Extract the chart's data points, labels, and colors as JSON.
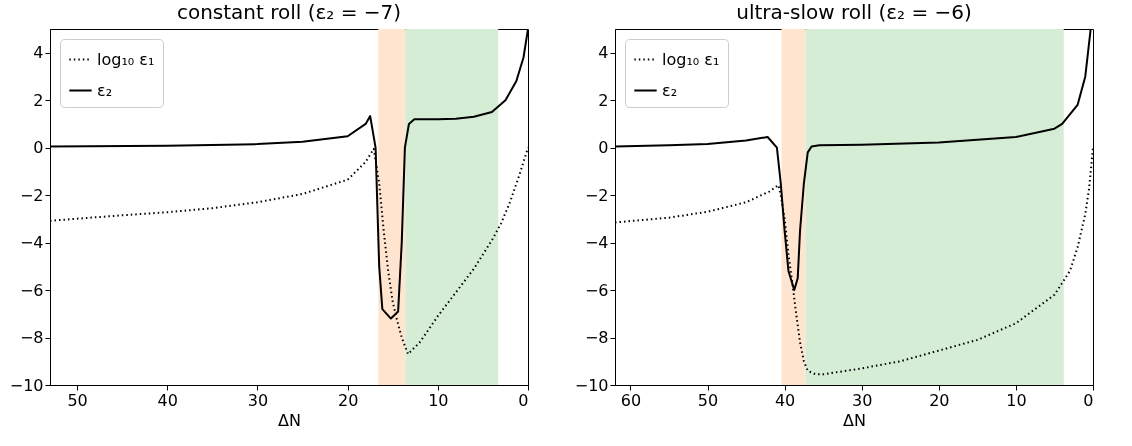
{
  "chart_data": [
    {
      "type": "line",
      "title": "constant roll (ε₂ = −7)",
      "xlabel": "ΔN",
      "xlim": [
        53,
        0
      ],
      "ylim": [
        -10,
        5
      ],
      "xticks": [
        50,
        40,
        30,
        20,
        10,
        0
      ],
      "yticks": [
        -10,
        -8,
        -6,
        -4,
        -2,
        0,
        2,
        4
      ],
      "grid": false,
      "legend": "top left",
      "bands": [
        {
          "axis": "x",
          "from": 16.6,
          "to": 13.6,
          "color": "#ffe5cf"
        },
        {
          "axis": "x",
          "from": 13.6,
          "to": 3.3,
          "color": "#d5ecd5"
        }
      ],
      "series": [
        {
          "name": "log₁₀ ε₁",
          "color": "#000000",
          "line_style": "dotted",
          "x": [
            53,
            45,
            40,
            35,
            30,
            25,
            20,
            18,
            17.1,
            16.5,
            16,
            15.5,
            15,
            14.5,
            14,
            13.3,
            12,
            10,
            8,
            6,
            4,
            3,
            2,
            1,
            0
          ],
          "values": [
            -3.08,
            -2.85,
            -2.72,
            -2.55,
            -2.3,
            -1.95,
            -1.35,
            -0.6,
            -0.05,
            -1.5,
            -3.5,
            -5.2,
            -6.5,
            -7.3,
            -8,
            -8.7,
            -8.2,
            -7.1,
            -6.1,
            -5.1,
            -3.9,
            -3.2,
            -2.3,
            -1.2,
            0
          ]
        },
        {
          "name": "ε₂",
          "color": "#000000",
          "line_style": "solid",
          "x": [
            53,
            40,
            30,
            25,
            20,
            18,
            17.5,
            16.9,
            16.5,
            16.15,
            15.2,
            14.4,
            14,
            13.65,
            13.2,
            12.6,
            10,
            8,
            6,
            4,
            2.5,
            1.3,
            0.5,
            0
          ],
          "values": [
            0.05,
            0.08,
            0.15,
            0.25,
            0.48,
            1.0,
            1.33,
            0,
            -5,
            -6.8,
            -7.2,
            -6.9,
            -4,
            0,
            1.0,
            1.2,
            1.2,
            1.22,
            1.3,
            1.5,
            2.0,
            2.8,
            3.8,
            5
          ]
        }
      ]
    },
    {
      "type": "line",
      "title": "ultra-slow roll (ε₂ = −6)",
      "xlabel": "ΔN",
      "xlim": [
        62,
        0
      ],
      "ylim": [
        -10,
        5
      ],
      "xticks": [
        60,
        50,
        40,
        30,
        20,
        10,
        0
      ],
      "yticks": [
        -10,
        -8,
        -6,
        -4,
        -2,
        0,
        2,
        4
      ],
      "grid": false,
      "legend": "top left",
      "bands": [
        {
          "axis": "x",
          "from": 40.4,
          "to": 37.3,
          "color": "#ffe5cf"
        },
        {
          "axis": "x",
          "from": 37.3,
          "to": 3.8,
          "color": "#d5ecd5"
        }
      ],
      "series": [
        {
          "name": "log₁₀ ε₁",
          "color": "#000000",
          "line_style": "dotted",
          "x": [
            62,
            55,
            50,
            45,
            42,
            40.8,
            40.5,
            40,
            39.5,
            39,
            38.5,
            38,
            37.5,
            37,
            36,
            35,
            30,
            25,
            20,
            15,
            10,
            5,
            4,
            3,
            2,
            1,
            0.5,
            0
          ],
          "values": [
            -3.15,
            -2.95,
            -2.7,
            -2.3,
            -1.85,
            -1.58,
            -2,
            -3,
            -4.5,
            -5.7,
            -7,
            -8.2,
            -9.0,
            -9.4,
            -9.55,
            -9.55,
            -9.3,
            -9.0,
            -8.55,
            -8.1,
            -7.4,
            -6.2,
            -5.7,
            -5.2,
            -4.2,
            -2.8,
            -1.7,
            0
          ]
        },
        {
          "name": "ε₂",
          "color": "#000000",
          "line_style": "solid",
          "x": [
            62,
            55,
            50,
            45,
            42.2,
            41,
            40.5,
            40,
            39.5,
            38.75,
            38.3,
            38,
            37.5,
            37,
            36.5,
            35.5,
            30,
            20,
            10,
            5,
            4,
            2,
            1,
            0.3
          ],
          "values": [
            0.05,
            0.1,
            0.15,
            0.3,
            0.45,
            0,
            -1.5,
            -3.5,
            -5.2,
            -6.0,
            -5.5,
            -3.5,
            -1.5,
            -0.2,
            0.05,
            0.1,
            0.12,
            0.22,
            0.45,
            0.8,
            1.0,
            1.8,
            3.0,
            5
          ]
        }
      ]
    }
  ]
}
